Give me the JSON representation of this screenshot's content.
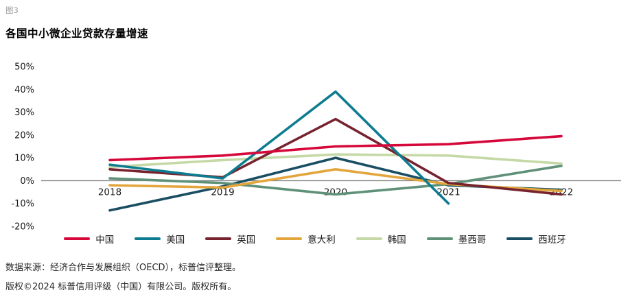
{
  "figure": {
    "label": "图3",
    "title": "各国中小微企业贷款存量增速"
  },
  "chart_data": {
    "type": "line",
    "title": "各国中小微企业贷款存量增速",
    "categories": [
      "2018",
      "2019",
      "2020",
      "2021",
      "2022"
    ],
    "series": [
      {
        "name": "中国",
        "color": "#d6083b",
        "values": [
          9,
          11,
          15,
          16,
          19.5
        ]
      },
      {
        "name": "美国",
        "color": "#0e7c90",
        "values": [
          7,
          1,
          39,
          -10,
          null
        ]
      },
      {
        "name": "英国",
        "color": "#76232f",
        "values": [
          5,
          1.5,
          27,
          -1,
          -6
        ]
      },
      {
        "name": "意大利",
        "color": "#e3a63c",
        "values": [
          -2,
          -3,
          5,
          -1.5,
          -4.5
        ]
      },
      {
        "name": "韩国",
        "color": "#c5d9a7",
        "values": [
          6,
          9,
          11.5,
          11,
          7.5
        ]
      },
      {
        "name": "墨西哥",
        "color": "#5f9179",
        "values": [
          1,
          -1,
          -6,
          -1.5,
          6.5
        ]
      },
      {
        "name": "西班牙",
        "color": "#1a4f63",
        "values": [
          -13,
          -2.5,
          10,
          -2,
          -4
        ]
      }
    ],
    "xlabel": "",
    "ylabel": "",
    "ylim": [
      -20,
      50
    ],
    "yticks": [
      50,
      40,
      30,
      20,
      10,
      0,
      -10,
      -20
    ],
    "ytick_suffix": "%",
    "grid": "zero-line-only",
    "legend_position": "bottom"
  },
  "footer": {
    "source": "数据来源：经济合作与发展组织（OECD），标普信评整理。",
    "copyright": "版权©2024 标普信用评级（中国）有限公司。版权所有。"
  }
}
